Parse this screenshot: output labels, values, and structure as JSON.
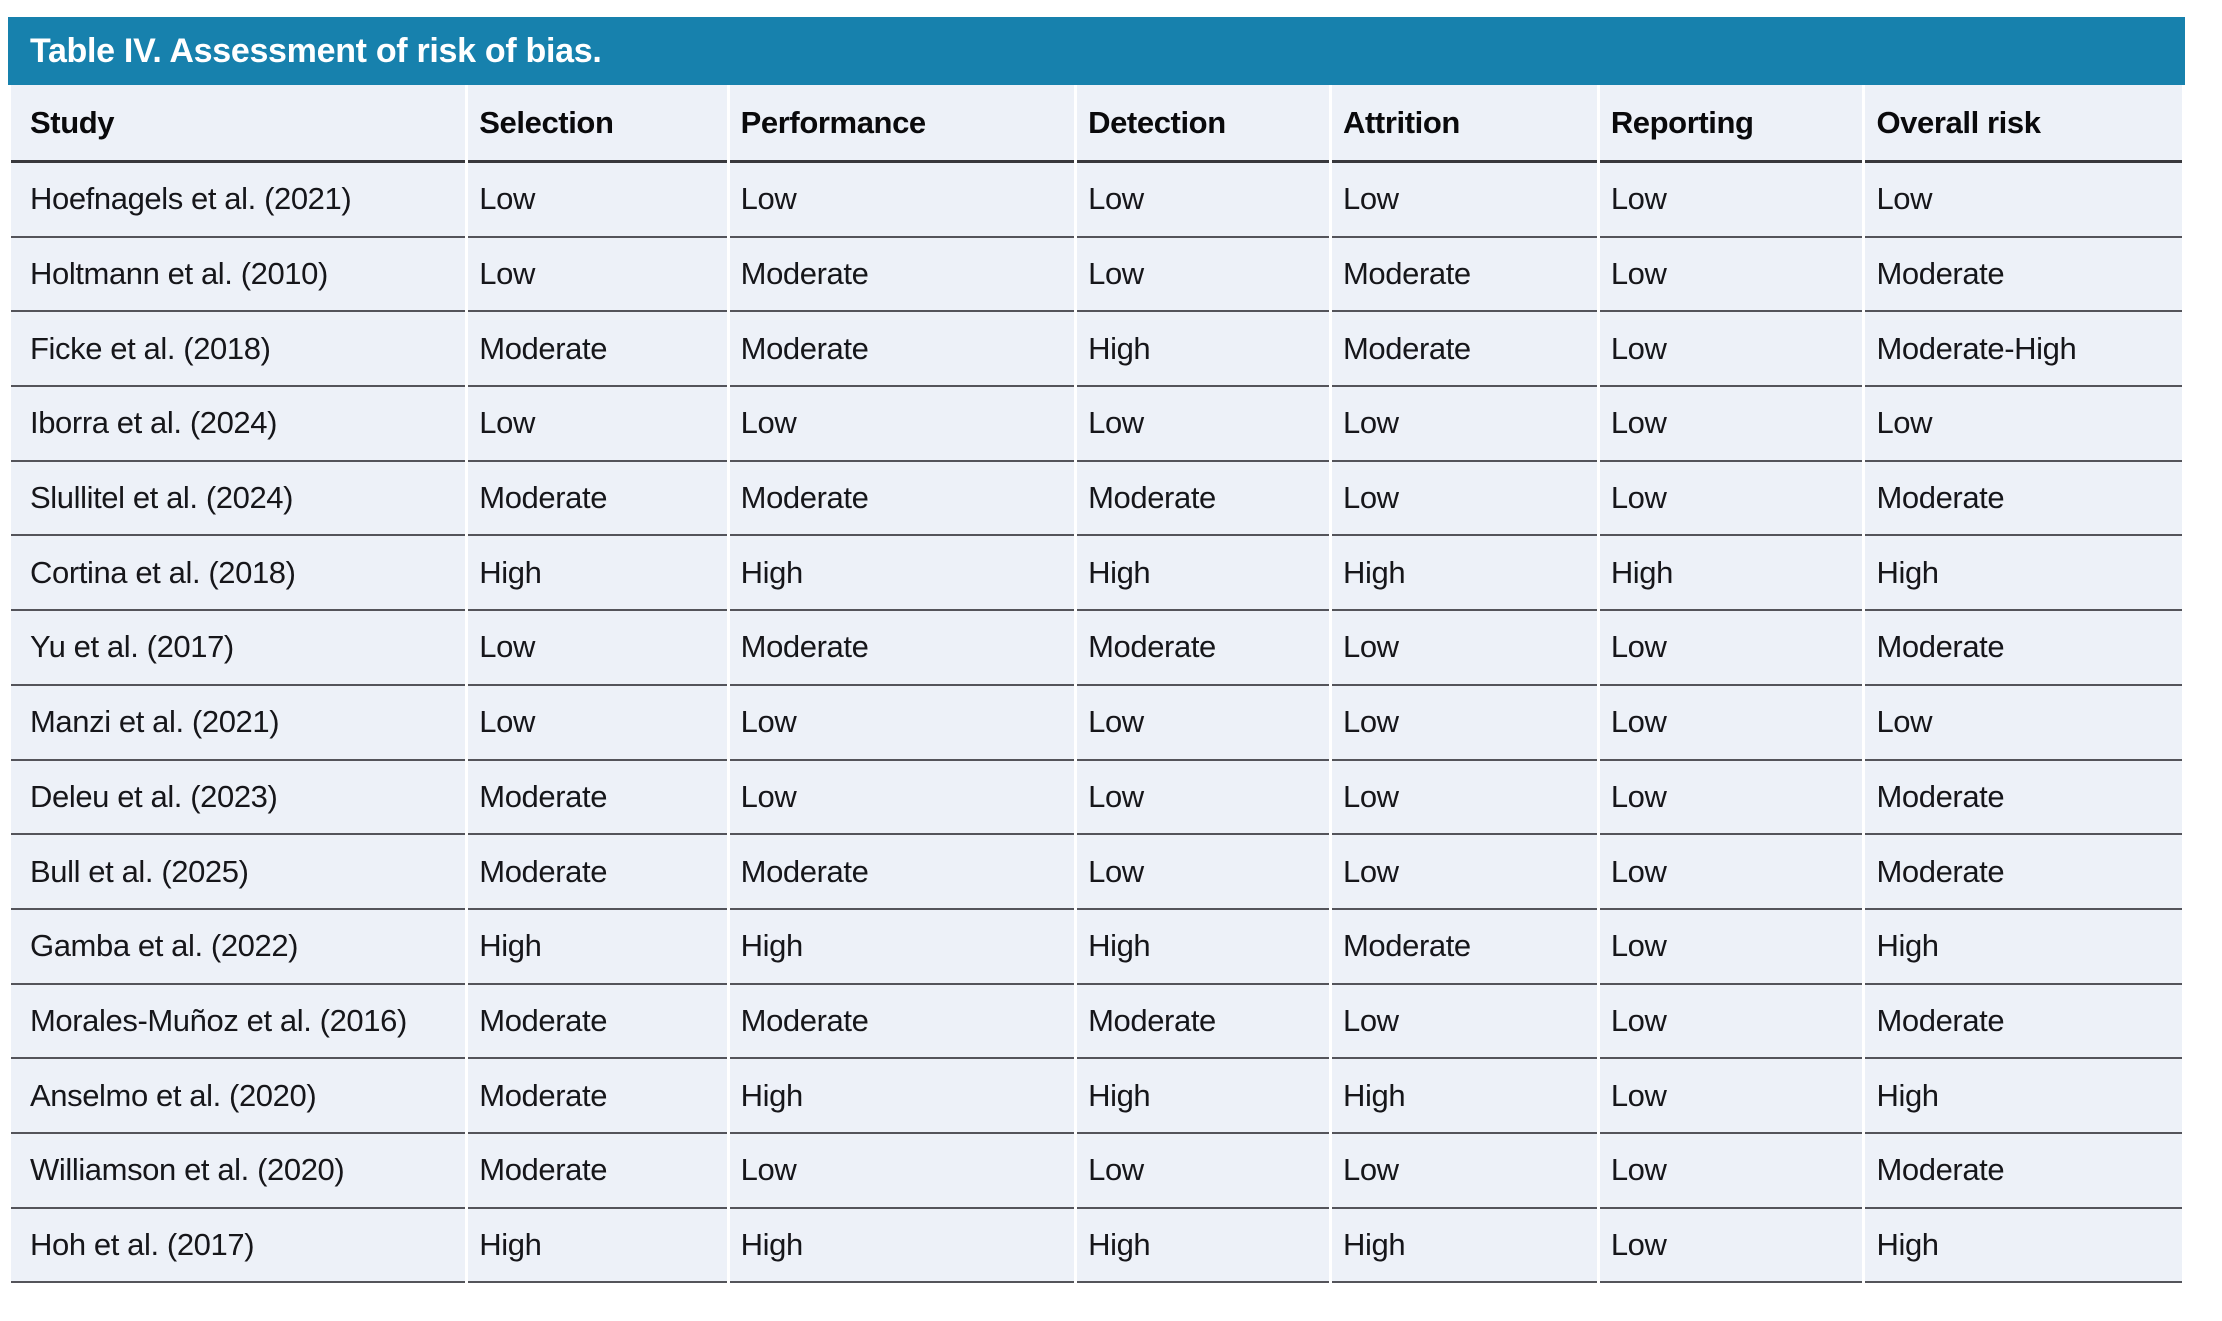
{
  "title_bar": {
    "text": "Table IV. Assessment of risk of bias.",
    "background_color": "#1781ad",
    "text_color": "#ffffff"
  },
  "table": {
    "row_background_color": "#edf1f8",
    "separator_color": "#54545a",
    "header_rule_color": "#38383c",
    "columns": [
      "Study",
      "Selection",
      "Performance",
      "Detection",
      "Attrition",
      "Reporting",
      "Overall risk"
    ],
    "column_widths_pct": [
      21.1,
      12.0,
      16.0,
      11.7,
      12.3,
      12.2,
      14.7
    ],
    "rows": [
      [
        "Hoefnagels et al. (2021)",
        "Low",
        "Low",
        "Low",
        "Low",
        "Low",
        "Low"
      ],
      [
        "Holtmann et al. (2010)",
        "Low",
        "Moderate",
        "Low",
        "Moderate",
        "Low",
        "Moderate"
      ],
      [
        "Ficke et al. (2018)",
        "Moderate",
        "Moderate",
        "High",
        "Moderate",
        "Low",
        "Moderate-High"
      ],
      [
        "Iborra et al. (2024)",
        "Low",
        "Low",
        "Low",
        "Low",
        "Low",
        "Low"
      ],
      [
        "Slullitel et al. (2024)",
        "Moderate",
        "Moderate",
        "Moderate",
        "Low",
        "Low",
        "Moderate"
      ],
      [
        "Cortina et al. (2018)",
        "High",
        "High",
        "High",
        "High",
        "High",
        "High"
      ],
      [
        "Yu et al. (2017)",
        "Low",
        "Moderate",
        "Moderate",
        "Low",
        "Low",
        "Moderate"
      ],
      [
        "Manzi et al. (2021)",
        "Low",
        "Low",
        "Low",
        "Low",
        "Low",
        "Low"
      ],
      [
        "Deleu et al. (2023)",
        "Moderate",
        "Low",
        "Low",
        "Low",
        "Low",
        "Moderate"
      ],
      [
        "Bull et al. (2025)",
        "Moderate",
        "Moderate",
        "Low",
        "Low",
        "Low",
        "Moderate"
      ],
      [
        "Gamba et al. (2022)",
        "High",
        "High",
        "High",
        "Moderate",
        "Low",
        "High"
      ],
      [
        "Morales-Muñoz et al. (2016)",
        "Moderate",
        "Moderate",
        "Moderate",
        "Low",
        "Low",
        "Moderate"
      ],
      [
        "Anselmo et al. (2020)",
        "Moderate",
        "High",
        "High",
        "High",
        "Low",
        "High"
      ],
      [
        "Williamson et al. (2020)",
        "Moderate",
        "Low",
        "Low",
        "Low",
        "Low",
        "Moderate"
      ],
      [
        "Hoh et al. (2017)",
        "High",
        "High",
        "High",
        "High",
        "Low",
        "High"
      ]
    ]
  }
}
